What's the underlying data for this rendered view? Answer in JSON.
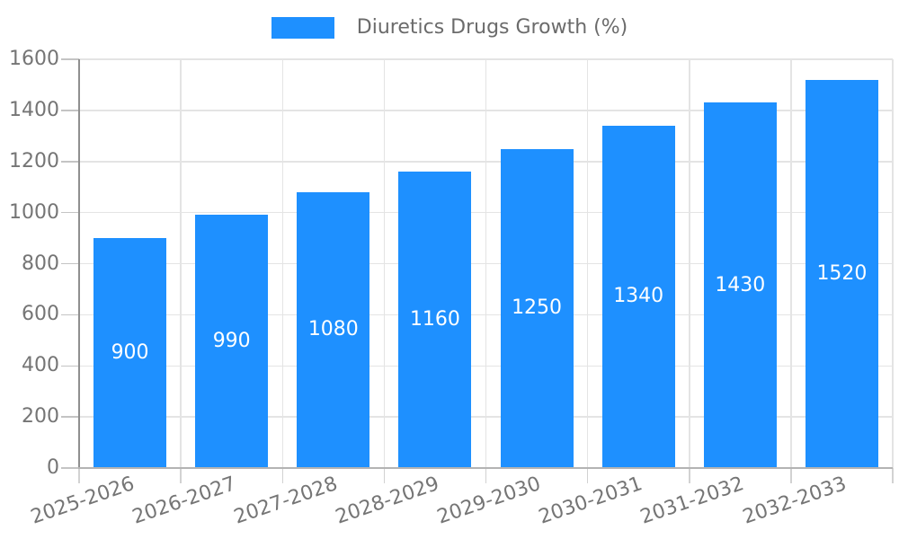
{
  "legend": {
    "label": "Diuretics Drugs Growth (%)"
  },
  "colors": {
    "bar": "#1e90ff",
    "bar_value_text": "#ffffff",
    "axis_text": "#757575",
    "legend_text": "#6b6b6b",
    "gridline": "#e4e4e4",
    "y_axis_line": "#8f8f8f",
    "x_axis_line": "#b3b3b3"
  },
  "chart_data": {
    "type": "bar",
    "title": "",
    "xlabel": "",
    "ylabel": "",
    "categories": [
      "2025-2026",
      "2026-2027",
      "2027-2028",
      "2028-2029",
      "2029-2030",
      "2030-2031",
      "2031-2032",
      "2032-2033"
    ],
    "series": [
      {
        "name": "Diuretics Drugs Growth (%)",
        "values": [
          900,
          990,
          1080,
          1160,
          1250,
          1340,
          1430,
          1520
        ]
      }
    ],
    "ylim": [
      0,
      1600
    ],
    "ytick_step": 200,
    "yticks": [
      0,
      200,
      400,
      600,
      800,
      1000,
      1200,
      1400,
      1600
    ],
    "grid": true,
    "legend_position": "top-center",
    "value_labels_position": "inside-center",
    "x_label_rotation_deg": -19
  }
}
